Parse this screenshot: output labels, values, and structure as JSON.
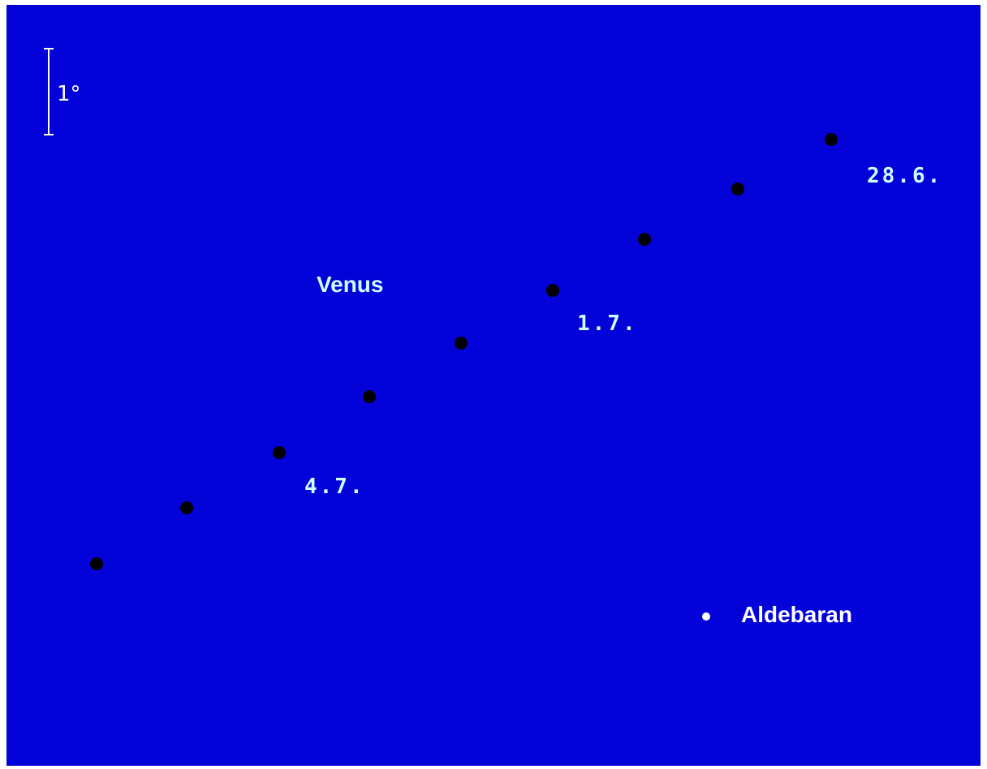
{
  "scale_label": "1°",
  "object_label": "Venus",
  "dates": [
    "28.6.",
    "1.7.",
    "4.7."
  ],
  "star_label": "Aldebaran"
}
